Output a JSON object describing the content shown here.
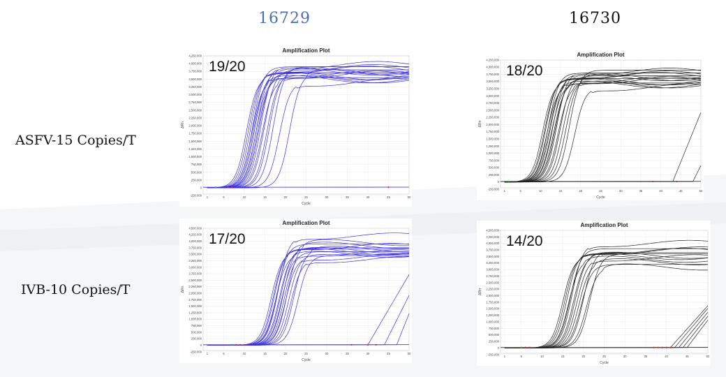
{
  "columns": [
    {
      "label": "16729",
      "color": "#4a6fb5"
    },
    {
      "label": "16730",
      "color": "#111111"
    }
  ],
  "rows": [
    {
      "label": "ASFV-15 Copies/T"
    },
    {
      "label": "IVB-10 Copies/T"
    }
  ],
  "chart_data": [
    {
      "type": "line",
      "title": "Amplification Plot",
      "annotation": "19/20",
      "xlabel": "Cycle",
      "ylabel": "ΔRn",
      "line_color": "#3a2fe0",
      "xlim": [
        0,
        50
      ],
      "ylim": [
        -200000,
        4250000
      ],
      "yticks": [
        "4,250,000",
        "4,000,000",
        "3,750,000",
        "3,500,000",
        "3,250,000",
        "3,000,000",
        "2,750,000",
        "2,500,000",
        "2,250,000",
        "2,000,000",
        "1,750,000",
        "1,500,000",
        "1,250,000",
        "1,000,000",
        "750,000",
        "500,000",
        "250,000",
        "0",
        "-250,000"
      ],
      "xticks": [
        "1",
        "5",
        "10",
        "15",
        "20",
        "25",
        "30",
        "35",
        "40",
        "45",
        "50"
      ],
      "curves": {
        "ct": [
          10.5,
          11,
          11.5,
          11.8,
          12,
          12.2,
          12.5,
          12.8,
          13,
          13.2,
          13.5,
          14,
          14.3,
          14.8,
          15.5,
          16,
          17,
          18.5,
          21
        ],
        "plateau": [
          3.6,
          3.7,
          3.8,
          3.5,
          3.9,
          3.65,
          3.75,
          3.55,
          3.85,
          3.6,
          3.7,
          3.95,
          3.5,
          3.8,
          3.65,
          3.75,
          3.9,
          3.4,
          3.7
        ],
        "late_ct": [],
        "late_end": []
      },
      "baseline_markers": [
        3,
        6,
        7,
        45
      ]
    },
    {
      "type": "line",
      "title": "Amplification Plot",
      "annotation": "18/20",
      "xlabel": "Cycle",
      "ylabel": "ΔRn",
      "line_color": "#222222",
      "xlim": [
        0,
        50
      ],
      "ylim": [
        -200000,
        4250000
      ],
      "yticks": [
        "4,250,000",
        "4,000,000",
        "3,750,000",
        "3,500,000",
        "3,250,000",
        "3,000,000",
        "2,750,000",
        "2,500,000",
        "2,250,000",
        "2,000,000",
        "1,750,000",
        "1,500,000",
        "1,250,000",
        "1,000,000",
        "750,000",
        "500,000",
        "250,000",
        "0",
        "-250,000"
      ],
      "xticks": [
        "1",
        "5",
        "10",
        "15",
        "20",
        "25",
        "30",
        "35",
        "40",
        "45",
        "50"
      ],
      "curves": {
        "ct": [
          10.5,
          11,
          11.3,
          11.6,
          11.9,
          12.1,
          12.4,
          12.7,
          13,
          13.3,
          13.6,
          14,
          14.4,
          14.9,
          15.5,
          16.3,
          17.2,
          18.5
        ],
        "plateau": [
          3.5,
          3.6,
          3.7,
          3.4,
          3.8,
          3.55,
          3.65,
          3.45,
          3.75,
          3.5,
          3.6,
          3.85,
          3.4,
          3.7,
          3.55,
          3.65,
          3.9,
          3.3
        ],
        "late_ct": [
          43,
          48
        ],
        "late_end": [
          2.4,
          0.55
        ]
      },
      "baseline_markers": [
        2,
        38,
        44
      ]
    },
    {
      "type": "line",
      "title": "Amplification Plot",
      "annotation": "17/20",
      "xlabel": "Cycle",
      "ylabel": "ΔRn",
      "line_color": "#3a2fe0",
      "xlim": [
        0,
        50
      ],
      "ylim": [
        -200000,
        4500000
      ],
      "yticks": [
        "4,500,000",
        "4,250,000",
        "4,000,000",
        "3,750,000",
        "3,500,000",
        "3,250,000",
        "3,000,000",
        "2,750,000",
        "2,500,000",
        "2,250,000",
        "2,000,000",
        "1,750,000",
        "1,500,000",
        "1,250,000",
        "1,000,000",
        "750,000",
        "500,000",
        "250,000",
        "0",
        "-250,000"
      ],
      "xticks": [
        "1",
        "5",
        "10",
        "15",
        "20",
        "25",
        "30",
        "35",
        "40",
        "45",
        "50"
      ],
      "curves": {
        "ct": [
          16.5,
          17,
          17.3,
          17.6,
          17.9,
          18.2,
          18.5,
          18.8,
          19.1,
          19.4,
          19.7,
          20,
          20.4,
          20.8,
          21.3,
          22,
          23
        ],
        "plateau": [
          3.6,
          3.7,
          3.8,
          3.5,
          3.9,
          4.2,
          3.65,
          3.75,
          3.55,
          3.85,
          3.6,
          3.4,
          3.95,
          3.5,
          3.3,
          3.7,
          3.45
        ],
        "late_ct": [
          40,
          44,
          47
        ],
        "late_end": [
          2.7,
          1.9,
          1.2
        ]
      },
      "baseline_markers": [
        7,
        8,
        9,
        10,
        36,
        40,
        42
      ]
    },
    {
      "type": "line",
      "title": "Amplification Plot",
      "annotation": "14/20",
      "xlabel": "Cycle",
      "ylabel": "ΔRn",
      "line_color": "#222222",
      "xlim": [
        0,
        50
      ],
      "ylim": [
        -200000,
        4500000
      ],
      "yticks": [
        "4,500,000",
        "4,250,000",
        "4,000,000",
        "3,750,000",
        "3,500,000",
        "3,250,000",
        "3,000,000",
        "2,750,000",
        "2,500,000",
        "2,250,000",
        "2,000,000",
        "1,750,000",
        "1,500,000",
        "1,250,000",
        "1,000,000",
        "750,000",
        "500,000",
        "250,000",
        "0",
        "-250,000"
      ],
      "xticks": [
        "1",
        "5",
        "10",
        "15",
        "20",
        "25",
        "30",
        "35",
        "40",
        "45",
        "50"
      ],
      "curves": {
        "ct": [
          15,
          15.5,
          16,
          16.4,
          16.8,
          17.2,
          17.6,
          18,
          18.4,
          18.9,
          19.4,
          20,
          20.7,
          21.5
        ],
        "plateau": [
          3.5,
          3.6,
          3.7,
          3.4,
          3.8,
          4.0,
          3.55,
          3.65,
          3.45,
          3.3,
          3.2,
          3.75,
          3.1,
          3.6
        ],
        "late_ct": [
          41,
          42,
          43,
          44,
          45
        ],
        "late_end": [
          1.6,
          1.5,
          1.35,
          1.2,
          1.05
        ]
      },
      "baseline_markers": [
        5,
        6,
        7,
        37,
        38,
        39,
        40,
        41
      ]
    }
  ]
}
